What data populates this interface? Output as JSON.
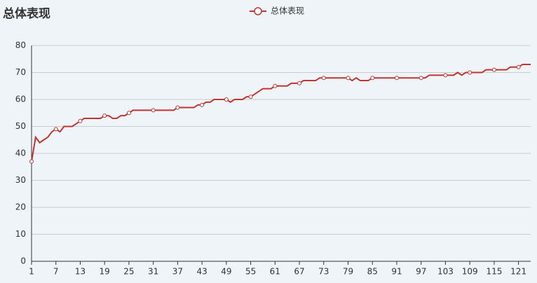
{
  "chart_data": {
    "type": "line",
    "title": "总体表现",
    "x": [
      1,
      2,
      3,
      4,
      5,
      6,
      7,
      8,
      9,
      10,
      11,
      12,
      13,
      14,
      15,
      16,
      17,
      18,
      19,
      20,
      21,
      22,
      23,
      24,
      25,
      26,
      27,
      28,
      29,
      30,
      31,
      32,
      33,
      34,
      35,
      36,
      37,
      38,
      39,
      40,
      41,
      42,
      43,
      44,
      45,
      46,
      47,
      48,
      49,
      50,
      51,
      52,
      53,
      54,
      55,
      56,
      57,
      58,
      59,
      60,
      61,
      62,
      63,
      64,
      65,
      66,
      67,
      68,
      69,
      70,
      71,
      72,
      73,
      74,
      75,
      76,
      77,
      78,
      79,
      80,
      81,
      82,
      83,
      84,
      85,
      86,
      87,
      88,
      89,
      90,
      91,
      92,
      93,
      94,
      95,
      96,
      97,
      98,
      99,
      100,
      101,
      102,
      103,
      104,
      105,
      106,
      107,
      108,
      109,
      110,
      111,
      112,
      113,
      114,
      115,
      116,
      117,
      118,
      119,
      120,
      121,
      122,
      123,
      124
    ],
    "series": [
      {
        "name": "总体表现",
        "color": "#c23531",
        "values": [
          37,
          46,
          44,
          45,
          46,
          48,
          49,
          48,
          50,
          50,
          50,
          51,
          52,
          53,
          53,
          53,
          53,
          53,
          54,
          54,
          53,
          53,
          54,
          54,
          55,
          56,
          56,
          56,
          56,
          56,
          56,
          56,
          56,
          56,
          56,
          56,
          57,
          57,
          57,
          57,
          57,
          58,
          58,
          59,
          59,
          60,
          60,
          60,
          60,
          59,
          60,
          60,
          60,
          61,
          61,
          62,
          63,
          64,
          64,
          64,
          65,
          65,
          65,
          65,
          66,
          66,
          66,
          67,
          67,
          67,
          67,
          68,
          68,
          68,
          68,
          68,
          68,
          68,
          68,
          67,
          68,
          67,
          67,
          67,
          68,
          68,
          68,
          68,
          68,
          68,
          68,
          68,
          68,
          68,
          68,
          68,
          68,
          68,
          69,
          69,
          69,
          69,
          69,
          69,
          69,
          70,
          69,
          70,
          70,
          70,
          70,
          70,
          71,
          71,
          71,
          71,
          71,
          71,
          72,
          72,
          72,
          73,
          73,
          73
        ]
      }
    ],
    "xlim": [
      1,
      124
    ],
    "xticks": [
      1,
      7,
      13,
      19,
      25,
      31,
      37,
      43,
      49,
      55,
      61,
      67,
      73,
      79,
      85,
      91,
      97,
      103,
      109,
      115,
      121
    ],
    "ylim": [
      0,
      80
    ],
    "yticks": [
      0,
      10,
      20,
      30,
      40,
      50,
      60,
      70,
      80
    ],
    "grid": true
  }
}
